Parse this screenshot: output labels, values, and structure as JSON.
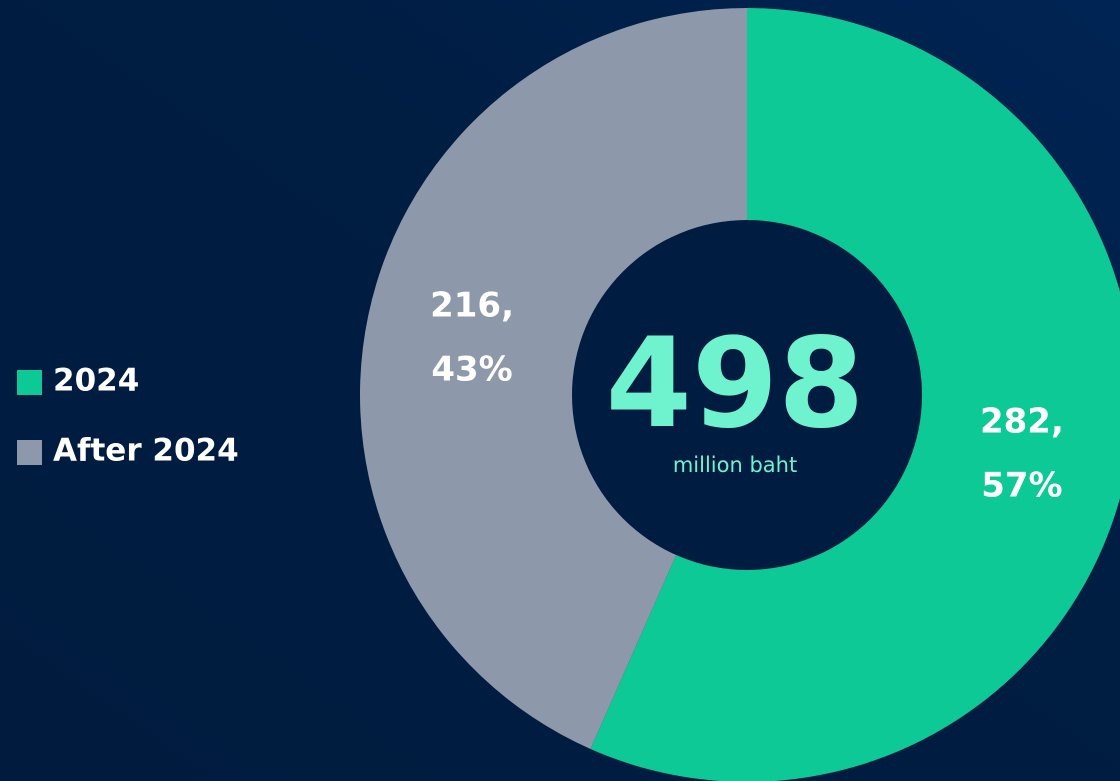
{
  "chart_data": {
    "type": "donut",
    "categories": [
      "2024",
      "After 2024"
    ],
    "values": [
      282,
      216
    ],
    "value_labels": [
      "282,",
      "216,"
    ],
    "percents": [
      57,
      43
    ],
    "percent_labels": [
      "57%",
      "43%"
    ],
    "colors": [
      "#0cc995",
      "#8d99aa"
    ],
    "total": 498,
    "total_caption": "million baht",
    "legend": "left"
  }
}
